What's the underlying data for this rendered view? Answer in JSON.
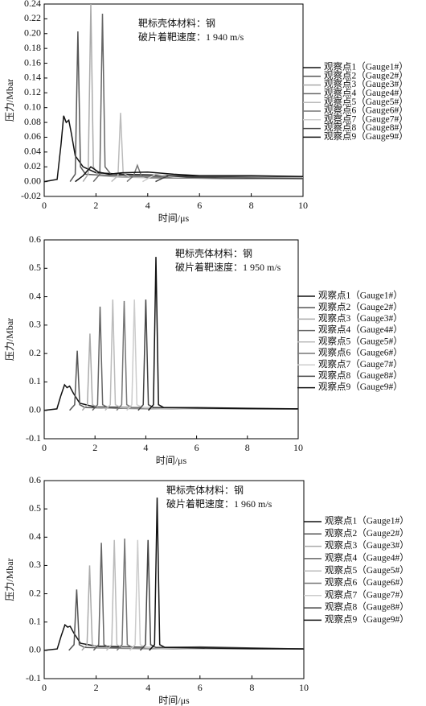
{
  "chart_data": [
    {
      "type": "line",
      "annotations": [
        "靶标壳体材料：钢",
        "破片着靶速度：1 940 m/s"
      ],
      "x_label": "时间/μs",
      "y_label": "压力/Mbar",
      "xlim": [
        0,
        10
      ],
      "ylim": [
        -0.02,
        0.24
      ],
      "xticks": [
        0,
        2,
        4,
        6,
        8,
        10
      ],
      "yticks": [
        -0.02,
        {
          "value": 0,
          "label": "0.00"
        },
        0.02,
        0.04,
        0.06,
        0.08,
        {
          "value": 0.1,
          "label": "0.10"
        },
        0.12,
        0.14,
        0.16,
        0.18,
        {
          "value": 0.2,
          "label": "0.20"
        },
        0.22,
        0.24
      ],
      "series": [
        {
          "name": "观察点1（Gauge1#）",
          "color": "#111111",
          "x": [
            0,
            0.5,
            0.65,
            0.75,
            0.85,
            0.95,
            1.05,
            1.2,
            1.5,
            2,
            3,
            4,
            6,
            8,
            10
          ],
          "values": [
            0,
            0.003,
            0.05,
            0.089,
            0.08,
            0.083,
            0.065,
            0.035,
            0.02,
            0.012,
            0.01,
            0.009,
            0.007,
            0.006,
            0.005
          ]
        },
        {
          "name": "观察点2（Gauge2#）",
          "color": "#555555",
          "x": [
            1,
            1.2,
            1.3,
            1.4,
            1.6,
            2,
            4,
            6,
            8,
            10
          ],
          "values": [
            0,
            0.01,
            0.203,
            0.02,
            0.01,
            0.009,
            0.007,
            0.006,
            0.006,
            0.006
          ]
        },
        {
          "name": "观察点3（Gauge3#）",
          "color": "#aaaaaa",
          "x": [
            1.5,
            1.7,
            1.8,
            1.9,
            2.1,
            3,
            5,
            8,
            10
          ],
          "values": [
            0,
            0.01,
            0.24,
            0.02,
            0.008,
            0.006,
            0.005,
            0.005,
            0.005
          ]
        },
        {
          "name": "观察点4（Gauge4#）",
          "color": "#666666",
          "x": [
            1.9,
            2.15,
            2.25,
            2.35,
            2.6,
            3.5,
            5,
            8,
            10
          ],
          "values": [
            0,
            0.01,
            0.227,
            0.02,
            0.009,
            0.007,
            0.006,
            0.006,
            0.006
          ]
        },
        {
          "name": "观察点5（Gauge5#）",
          "color": "#bbbbbb",
          "x": [
            2.6,
            2.85,
            2.95,
            3.05,
            3.3,
            4.5,
            7,
            10
          ],
          "values": [
            0,
            0.008,
            0.093,
            0.012,
            0.006,
            0.005,
            0.005,
            0.005
          ]
        },
        {
          "name": "观察点6（Gauge6#）",
          "color": "#777777",
          "x": [
            3.2,
            3.45,
            3.6,
            3.75,
            4,
            5,
            7,
            10
          ],
          "values": [
            0,
            0.008,
            0.022,
            0.008,
            0.005,
            0.005,
            0.004,
            0.004
          ]
        },
        {
          "name": "观察点7（Gauge7#）",
          "color": "#cccccc",
          "x": [
            3.8,
            4.1,
            4.3,
            5,
            7,
            10
          ],
          "values": [
            0,
            0.006,
            0.01,
            0.006,
            0.005,
            0.004
          ]
        },
        {
          "name": "观察点8（Gauge8#）",
          "color": "#444444",
          "x": [
            4.3,
            4.6,
            4.8,
            5.5,
            7,
            10
          ],
          "values": [
            0,
            0.005,
            0.008,
            0.006,
            0.005,
            0.004
          ]
        },
        {
          "name": "观察点9（Gauge9#）",
          "color": "#111111",
          "x": [
            1.2,
            1.5,
            1.8,
            2.1,
            2.5,
            3,
            4,
            5,
            6,
            8,
            10
          ],
          "values": [
            0,
            0.008,
            0.02,
            0.013,
            0.01,
            0.012,
            0.013,
            0.01,
            0.008,
            0.008,
            0.007
          ]
        }
      ]
    },
    {
      "type": "line",
      "annotations": [
        "靶标壳体材料：钢",
        "破片着靶速度：1 950 m/s"
      ],
      "x_label": "时间/μs",
      "y_label": "压力/Mbar",
      "xlim": [
        0,
        10
      ],
      "ylim": [
        -0.1,
        0.6
      ],
      "xticks": [
        0,
        2,
        4,
        6,
        8,
        10
      ],
      "yticks": [
        -0.1,
        {
          "value": 0,
          "label": "0.0"
        },
        0.1,
        0.2,
        0.3,
        0.4,
        0.5,
        0.6
      ],
      "series": [
        {
          "name": "观察点1（Gauge1#）",
          "color": "#111111",
          "x": [
            0,
            0.5,
            0.65,
            0.8,
            0.9,
            1,
            1.15,
            1.4,
            2,
            4,
            6,
            8,
            10
          ],
          "values": [
            0,
            0.005,
            0.05,
            0.09,
            0.08,
            0.085,
            0.06,
            0.025,
            0.012,
            0.009,
            0.007,
            0.006,
            0.005
          ]
        },
        {
          "name": "观察点2（Gauge2#）",
          "color": "#555555",
          "x": [
            1,
            1.2,
            1.3,
            1.4,
            1.6,
            3,
            10
          ],
          "values": [
            0,
            0.02,
            0.21,
            0.02,
            0.01,
            0.007,
            0.005
          ]
        },
        {
          "name": "观察点3（Gauge3#）",
          "color": "#aaaaaa",
          "x": [
            1.5,
            1.7,
            1.8,
            1.9,
            2.1,
            3.5,
            10
          ],
          "values": [
            0,
            0.02,
            0.27,
            0.02,
            0.01,
            0.006,
            0.005
          ]
        },
        {
          "name": "观察点4（Gauge4#）",
          "color": "#666666",
          "x": [
            1.9,
            2.1,
            2.2,
            2.3,
            2.5,
            4,
            10
          ],
          "values": [
            0,
            0.02,
            0.365,
            0.02,
            0.01,
            0.006,
            0.005
          ]
        },
        {
          "name": "观察点5（Gauge5#）",
          "color": "#bbbbbb",
          "x": [
            2.4,
            2.6,
            2.7,
            2.8,
            3,
            4.5,
            10
          ],
          "values": [
            0,
            0.02,
            0.39,
            0.02,
            0.01,
            0.006,
            0.005
          ]
        },
        {
          "name": "观察点6（Gauge6#）",
          "color": "#777777",
          "x": [
            2.85,
            3.05,
            3.15,
            3.25,
            3.45,
            5,
            10
          ],
          "values": [
            0,
            0.02,
            0.385,
            0.02,
            0.01,
            0.006,
            0.005
          ]
        },
        {
          "name": "观察点7（Gauge7#）",
          "color": "#cccccc",
          "x": [
            3.25,
            3.45,
            3.55,
            3.65,
            3.85,
            5.5,
            10
          ],
          "values": [
            0,
            0.02,
            0.39,
            0.02,
            0.01,
            0.006,
            0.005
          ]
        },
        {
          "name": "观察点8（Gauge8#）",
          "color": "#444444",
          "x": [
            3.7,
            3.9,
            4,
            4.1,
            4.3,
            6,
            10
          ],
          "values": [
            0,
            0.02,
            0.39,
            0.02,
            0.01,
            0.01,
            0.005
          ]
        },
        {
          "name": "观察点9（Gauge9#）",
          "color": "#111111",
          "x": [
            4.1,
            4.3,
            4.4,
            4.5,
            4.7,
            6,
            8,
            10
          ],
          "values": [
            0,
            0.02,
            0.54,
            0.02,
            0.01,
            0.008,
            0.006,
            0.005
          ]
        }
      ]
    },
    {
      "type": "line",
      "annotations": [
        "靶标壳体材料：钢",
        "破片着靶速度：1 960 m/s"
      ],
      "x_label": "时间/μs",
      "y_label": "压力/Mbar",
      "xlim": [
        0,
        10
      ],
      "ylim": [
        -0.1,
        0.6
      ],
      "xticks": [
        0,
        2,
        4,
        6,
        8,
        10
      ],
      "yticks": [
        -0.1,
        {
          "value": 0,
          "label": "0.0"
        },
        0.1,
        0.2,
        0.3,
        0.4,
        0.5,
        0.6
      ],
      "series": [
        {
          "name": "观察点1（Gauge1#）",
          "color": "#111111",
          "x": [
            0,
            0.5,
            0.65,
            0.8,
            0.9,
            1,
            1.15,
            1.4,
            2,
            4,
            6,
            8,
            10
          ],
          "values": [
            0,
            0.005,
            0.05,
            0.09,
            0.082,
            0.085,
            0.06,
            0.025,
            0.015,
            0.01,
            0.008,
            0.006,
            0.005
          ]
        },
        {
          "name": "观察点2（Gauge2#）",
          "color": "#555555",
          "x": [
            0.95,
            1.15,
            1.25,
            1.35,
            1.55,
            3,
            10
          ],
          "values": [
            0,
            0.02,
            0.215,
            0.02,
            0.01,
            0.007,
            0.005
          ]
        },
        {
          "name": "观察点3（Gauge3#）",
          "color": "#aaaaaa",
          "x": [
            1.45,
            1.65,
            1.75,
            1.85,
            2.05,
            3.5,
            10
          ],
          "values": [
            0,
            0.02,
            0.3,
            0.02,
            0.01,
            0.006,
            0.005
          ]
        },
        {
          "name": "观察点4（Gauge4#）",
          "color": "#666666",
          "x": [
            1.9,
            2.1,
            2.2,
            2.3,
            2.5,
            4,
            10
          ],
          "values": [
            0,
            0.02,
            0.38,
            0.02,
            0.01,
            0.006,
            0.005
          ]
        },
        {
          "name": "观察点5（Gauge5#）",
          "color": "#bbbbbb",
          "x": [
            2.4,
            2.6,
            2.7,
            2.8,
            3,
            4.5,
            10
          ],
          "values": [
            0,
            0.02,
            0.39,
            0.02,
            0.01,
            0.006,
            0.005
          ]
        },
        {
          "name": "观察点6（Gauge6#）",
          "color": "#777777",
          "x": [
            2.8,
            3,
            3.1,
            3.2,
            3.4,
            5,
            10
          ],
          "values": [
            0,
            0.02,
            0.395,
            0.02,
            0.01,
            0.006,
            0.005
          ]
        },
        {
          "name": "观察点7（Gauge7#）",
          "color": "#cccccc",
          "x": [
            3.3,
            3.5,
            3.6,
            3.7,
            3.9,
            5.5,
            10
          ],
          "values": [
            0,
            0.02,
            0.39,
            0.02,
            0.01,
            0.006,
            0.005
          ]
        },
        {
          "name": "观察点8（Gauge8#）",
          "color": "#444444",
          "x": [
            3.7,
            3.9,
            4,
            4.1,
            4.3,
            6,
            10
          ],
          "values": [
            0,
            0.02,
            0.39,
            0.02,
            0.01,
            0.012,
            0.005
          ]
        },
        {
          "name": "观察点9（Gauge9#）",
          "color": "#111111",
          "x": [
            4.05,
            4.25,
            4.35,
            4.45,
            4.65,
            6,
            8,
            10
          ],
          "values": [
            0,
            0.02,
            0.54,
            0.02,
            0.01,
            0.008,
            0.006,
            0.005
          ]
        }
      ]
    }
  ]
}
